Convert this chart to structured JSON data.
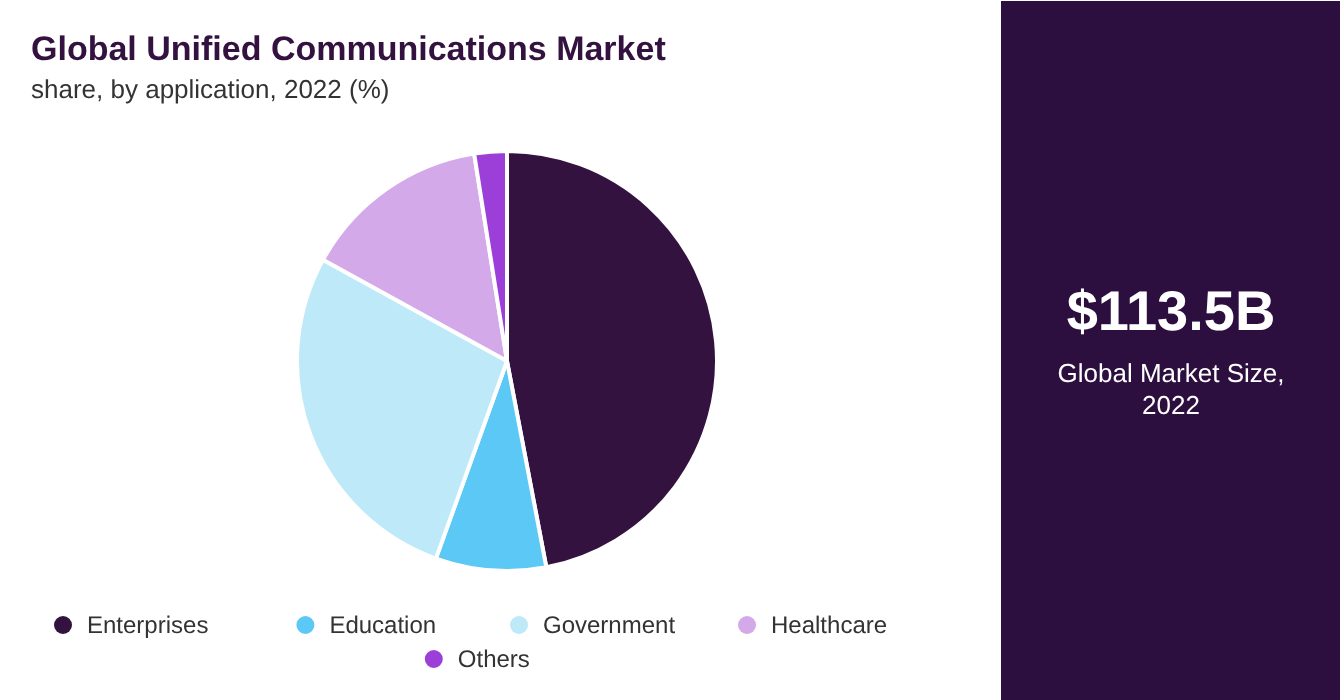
{
  "chart_data": {
    "type": "pie",
    "title": "Global Unified Communications Market",
    "subtitle": "share, by application, 2022 (%)",
    "categories": [
      "Enterprises",
      "Education",
      "Government",
      "Healthcare",
      "Others"
    ],
    "values": [
      47,
      8.5,
      27.5,
      14.5,
      2.5
    ],
    "colors": [
      "#33123f",
      "#5bc8f5",
      "#bde9f9",
      "#d4a9ea",
      "#9b3fd8"
    ],
    "legend": "bottom",
    "annotations": [
      "$113.5B",
      "Global Market Size, 2022"
    ]
  }
}
